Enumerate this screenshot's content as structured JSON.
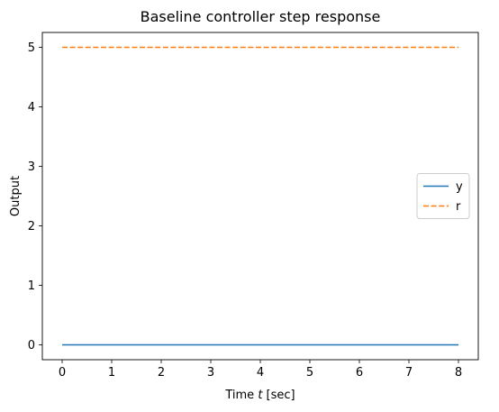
{
  "chart_data": {
    "type": "line",
    "title": "Baseline controller step response",
    "xlabel_prefix": "Time ",
    "xlabel_var": "t",
    "xlabel_suffix": " [sec]",
    "ylabel": "Output",
    "xlim": [
      -0.4,
      8.4
    ],
    "ylim": [
      -0.25,
      5.25
    ],
    "xticks": [
      0,
      1,
      2,
      3,
      4,
      5,
      6,
      7,
      8
    ],
    "yticks": [
      0,
      1,
      2,
      3,
      4,
      5
    ],
    "grid": false,
    "legend_position": "center-right",
    "series": [
      {
        "name": "y",
        "style": "solid",
        "color": "#1f77b4",
        "x": [
          0,
          8
        ],
        "y": [
          0,
          0
        ]
      },
      {
        "name": "r",
        "style": "dashed",
        "color": "#ff7f0e",
        "x": [
          0,
          8
        ],
        "y": [
          5,
          5
        ]
      }
    ]
  }
}
